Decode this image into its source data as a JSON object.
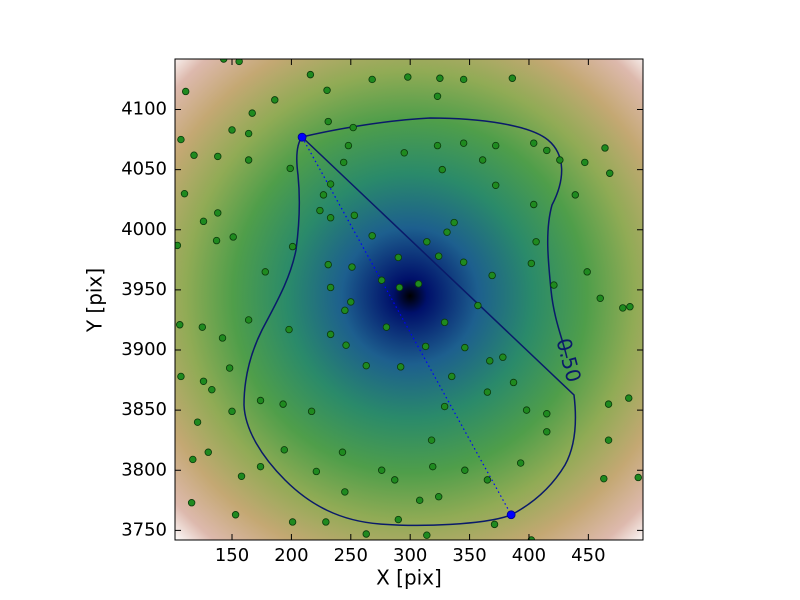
{
  "chart_data": {
    "type": "scatter",
    "x_label": "X [pix]",
    "y_label": "Y [pix]",
    "xlim": [
      102,
      496
    ],
    "ylim": [
      3742,
      4142
    ],
    "xticks": [
      150,
      200,
      250,
      300,
      350,
      400,
      450
    ],
    "yticks": [
      3750,
      3800,
      3850,
      3900,
      3950,
      4000,
      4050,
      4100
    ],
    "contour_label": "0.50",
    "points": {
      "color": "#1f8a1f",
      "x": [
        143,
        156,
        111,
        216,
        268,
        298,
        325,
        345,
        386,
        323,
        186,
        230,
        167,
        150,
        164,
        107,
        118,
        138,
        231,
        252,
        248,
        295,
        323,
        345,
        361,
        372,
        404,
        415,
        426,
        447,
        464,
        468,
        439,
        372,
        404,
        327,
        244,
        233,
        227,
        224,
        199,
        110,
        126,
        137,
        104,
        151,
        138,
        164,
        233,
        253,
        268,
        290,
        314,
        331,
        337,
        324,
        406,
        402,
        449,
        460,
        479,
        485,
        421,
        178,
        201,
        231,
        233,
        251,
        250,
        276,
        291,
        307,
        345,
        369,
        357,
        329,
        280,
        245,
        233,
        198,
        164,
        142,
        106,
        125,
        148,
        133,
        150,
        174,
        193,
        217,
        246,
        263,
        292,
        313,
        346,
        367,
        378,
        335,
        365,
        387,
        398,
        415,
        415,
        467,
        467,
        463,
        484,
        492,
        393,
        365,
        346,
        329,
        318,
        319,
        308,
        287,
        276,
        243,
        245,
        221,
        194,
        174,
        126,
        121,
        158,
        130,
        116,
        153,
        107,
        117,
        201,
        229,
        263,
        290,
        314,
        371,
        402,
        324
      ],
      "y": [
        4142,
        4140,
        4115,
        4129,
        4125,
        4127,
        4126,
        4125,
        4126,
        4111,
        4108,
        4116,
        4097,
        4083,
        4080,
        4075,
        4062,
        4061,
        4090,
        4085,
        4070,
        4064,
        4070,
        4072,
        4058,
        4070,
        4072,
        4066,
        4058,
        4056,
        4068,
        4047,
        4029,
        4037,
        4021,
        4050,
        4056,
        4038,
        4029,
        4016,
        4051,
        4030,
        4007,
        3991,
        3987,
        3994,
        4014,
        4058,
        4010,
        4012,
        3995,
        3977,
        3990,
        3998,
        4006,
        3978,
        3990,
        3972,
        3965,
        3943,
        3935,
        3936,
        3954,
        3965,
        3986,
        3971,
        3952,
        3969,
        3940,
        3958,
        3952,
        3955,
        3973,
        3962,
        3937,
        3923,
        3919,
        3933,
        3913,
        3917,
        3925,
        3910,
        3921,
        3919,
        3885,
        3867,
        3849,
        3858,
        3855,
        3849,
        3904,
        3887,
        3886,
        3903,
        3902,
        3891,
        3894,
        3878,
        3865,
        3873,
        3850,
        3847,
        3832,
        3855,
        3825,
        3793,
        3860,
        3794,
        3806,
        3792,
        3800,
        3853,
        3825,
        3803,
        3775,
        3792,
        3800,
        3815,
        3782,
        3799,
        3817,
        3803,
        3874,
        3840,
        3795,
        3815,
        3773,
        3763,
        3878,
        3809,
        3757,
        3757,
        3747,
        3759,
        3746,
        3755,
        3742,
        3778
      ]
    },
    "endpoints": {
      "color": "#0000ff",
      "x": [
        209,
        385
      ],
      "y": [
        4077,
        3763
      ]
    }
  }
}
